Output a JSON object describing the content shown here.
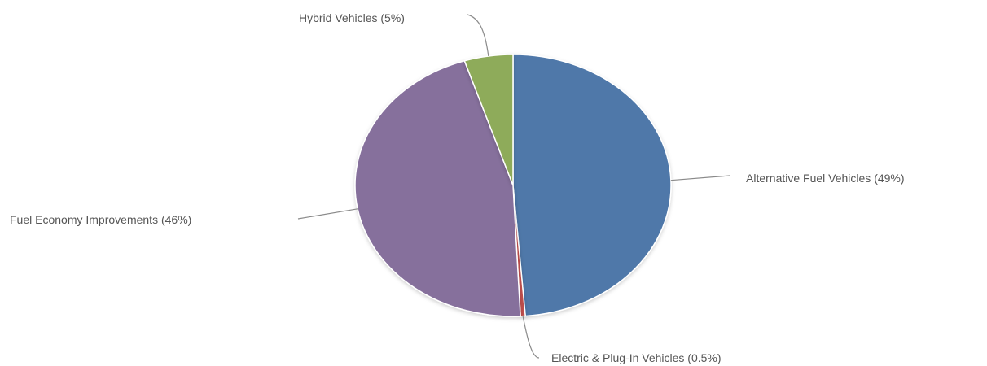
{
  "chart_data": {
    "type": "pie",
    "title": "",
    "labels_outside": true,
    "slices": [
      {
        "label": "Alternative Fuel Vehicles (49%)",
        "value": 49,
        "color": "#4f78a9"
      },
      {
        "label": "Electric & Plug-In Vehicles (0.5%)",
        "value": 0.5,
        "color": "#c0504d"
      },
      {
        "label": "Fuel Economy Improvements (46%)",
        "value": 46,
        "color": "#86709c"
      },
      {
        "label": "Hybrid Vehicles (5%)",
        "value": 5,
        "color": "#8eab5a"
      }
    ]
  }
}
